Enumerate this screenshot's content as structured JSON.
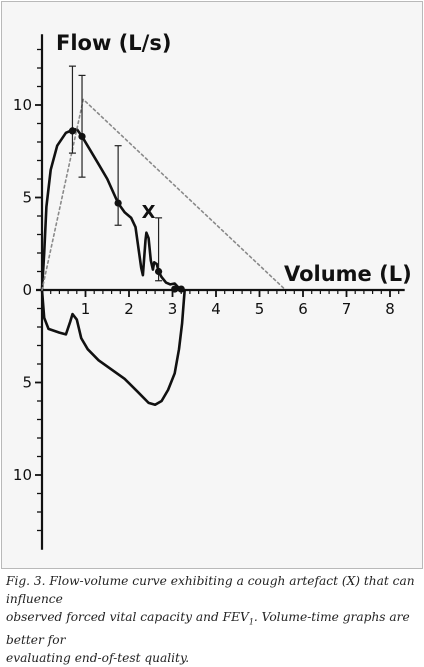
{
  "chart_data": {
    "type": "line",
    "title": "",
    "ylabel": "Flow (L/s)",
    "xlabel": "Volume (L)",
    "xlim": [
      0,
      8.2
    ],
    "ylim": [
      -13.5,
      13.5
    ],
    "x_ticks": [
      1,
      2,
      3,
      4,
      5,
      6,
      7,
      8
    ],
    "y_ticks_upper": [
      10,
      5,
      0
    ],
    "y_ticks_lower": [
      5,
      10
    ],
    "grid": false,
    "series": [
      {
        "role": "expiratory-flow",
        "style": "solid",
        "points": [
          [
            0,
            0
          ],
          [
            0.05,
            2
          ],
          [
            0.1,
            4.5
          ],
          [
            0.2,
            6.5
          ],
          [
            0.35,
            7.8
          ],
          [
            0.55,
            8.5
          ],
          [
            0.7,
            8.65
          ],
          [
            0.8,
            8.7
          ],
          [
            0.92,
            8.3
          ],
          [
            1.1,
            7.6
          ],
          [
            1.3,
            6.8
          ],
          [
            1.5,
            6
          ],
          [
            1.75,
            4.7
          ],
          [
            1.9,
            4.2
          ],
          [
            2.05,
            3.9
          ],
          [
            2.15,
            3.4
          ],
          [
            2.22,
            2.2
          ],
          [
            2.28,
            1.2
          ],
          [
            2.32,
            0.8
          ],
          [
            2.38,
            2.7
          ],
          [
            2.4,
            3.1
          ],
          [
            2.45,
            2.8
          ],
          [
            2.5,
            1.6
          ],
          [
            2.55,
            1.1
          ],
          [
            2.58,
            1.5
          ],
          [
            2.64,
            1.4
          ],
          [
            2.68,
            1
          ],
          [
            2.75,
            0.7
          ],
          [
            2.85,
            0.4
          ],
          [
            2.95,
            0.3
          ],
          [
            3.05,
            0.35
          ],
          [
            3.15,
            0.1
          ],
          [
            3.25,
            0
          ]
        ]
      },
      {
        "role": "inspiratory-flow",
        "style": "solid",
        "points": [
          [
            0,
            0
          ],
          [
            0.05,
            -1.5
          ],
          [
            0.15,
            -2.1
          ],
          [
            0.4,
            -2.3
          ],
          [
            0.55,
            -2.4
          ],
          [
            0.65,
            -1.7
          ],
          [
            0.7,
            -1.3
          ],
          [
            0.8,
            -1.6
          ],
          [
            0.9,
            -2.6
          ],
          [
            1.05,
            -3.2
          ],
          [
            1.3,
            -3.8
          ],
          [
            1.6,
            -4.3
          ],
          [
            1.9,
            -4.8
          ],
          [
            2.2,
            -5.5
          ],
          [
            2.45,
            -6.1
          ],
          [
            2.6,
            -6.2
          ],
          [
            2.75,
            -6
          ],
          [
            2.9,
            -5.4
          ],
          [
            3.05,
            -4.5
          ],
          [
            3.15,
            -3.2
          ],
          [
            3.22,
            -1.8
          ],
          [
            3.26,
            -0.6
          ],
          [
            3.28,
            0
          ]
        ]
      },
      {
        "role": "reference-triangle",
        "style": "dotted",
        "points": [
          [
            0,
            0
          ],
          [
            0.95,
            10.3
          ],
          [
            5.6,
            0
          ]
        ]
      }
    ],
    "measured_points": [
      [
        0.7,
        8.6
      ],
      [
        0.92,
        8.3
      ],
      [
        1.75,
        4.7
      ],
      [
        2.68,
        1
      ],
      [
        3.05,
        0.05
      ],
      [
        3.2,
        0.05
      ]
    ],
    "error_bars": [
      {
        "x": 0.7,
        "center": 8.6,
        "low": 7.4,
        "high": 12.1
      },
      {
        "x": 0.92,
        "center": 8.3,
        "low": 6.1,
        "high": 11.6
      },
      {
        "x": 1.75,
        "center": 4.7,
        "low": 3.5,
        "high": 7.8
      },
      {
        "x": 2.68,
        "center": 1,
        "low": 0.5,
        "high": 3.9
      }
    ],
    "annotations": [
      {
        "text": "X",
        "x": 2.45,
        "y": 3.9
      }
    ],
    "colors": {
      "line": "#111111",
      "dotted": "#8a8a8a",
      "frame_background": "#f6f6f6"
    }
  },
  "caption": {
    "line1": "Fig. 3. Flow-volume curve exhibiting a cough artefact (X) that can influence",
    "line2_pre": "observed forced vital capacity and FEV",
    "line2_sub": "1",
    "line2_post": ". Volume-time graphs are better for",
    "line3": "evaluating end-of-test quality."
  }
}
